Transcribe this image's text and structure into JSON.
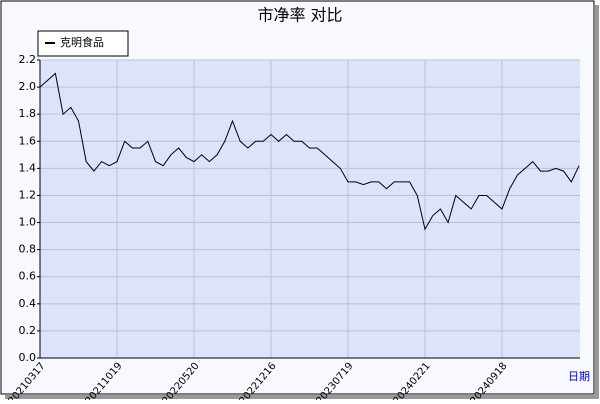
{
  "chart_data": {
    "type": "line",
    "title": "市净率  对比",
    "x_label": "日期",
    "categories": [
      "20210317",
      null,
      null,
      null,
      null,
      null,
      null,
      null,
      null,
      null,
      "20211019",
      null,
      null,
      null,
      null,
      null,
      null,
      null,
      null,
      null,
      "20220520",
      null,
      null,
      null,
      null,
      null,
      null,
      null,
      null,
      null,
      "20221216",
      null,
      null,
      null,
      null,
      null,
      null,
      null,
      null,
      null,
      "20230719",
      null,
      null,
      null,
      null,
      null,
      null,
      null,
      null,
      null,
      "20240221",
      null,
      null,
      null,
      null,
      null,
      null,
      null,
      null,
      null,
      "20240918",
      null,
      null,
      null,
      null,
      null,
      null,
      null,
      null,
      null,
      null
    ],
    "series": [
      {
        "name": "克明食品",
        "color": "#000000",
        "values": [
          2.0,
          2.05,
          2.1,
          1.8,
          1.85,
          1.75,
          1.45,
          1.38,
          1.45,
          1.42,
          1.45,
          1.6,
          1.55,
          1.55,
          1.6,
          1.45,
          1.42,
          1.5,
          1.55,
          1.48,
          1.45,
          1.5,
          1.45,
          1.5,
          1.6,
          1.75,
          1.6,
          1.55,
          1.6,
          1.6,
          1.65,
          1.6,
          1.65,
          1.6,
          1.6,
          1.55,
          1.55,
          1.5,
          1.45,
          1.4,
          1.3,
          1.3,
          1.28,
          1.3,
          1.3,
          1.25,
          1.3,
          1.3,
          1.3,
          1.2,
          0.95,
          1.05,
          1.1,
          1.0,
          1.2,
          1.15,
          1.1,
          1.2,
          1.2,
          1.15,
          1.1,
          1.25,
          1.35,
          1.4,
          1.45,
          1.38,
          1.38,
          1.4,
          1.38,
          1.3,
          1.42
        ]
      }
    ],
    "ylim": [
      0,
      2.2
    ],
    "yticks": [
      {
        "value": 0,
        "label": "0.0"
      },
      0.2,
      0.4,
      0.6,
      0.8,
      {
        "value": 1,
        "label": "1.0"
      },
      1.2,
      1.4,
      1.6,
      1.8,
      {
        "value": 2,
        "label": "2.0"
      },
      2.2
    ],
    "grid": true,
    "legend": "upper left"
  }
}
